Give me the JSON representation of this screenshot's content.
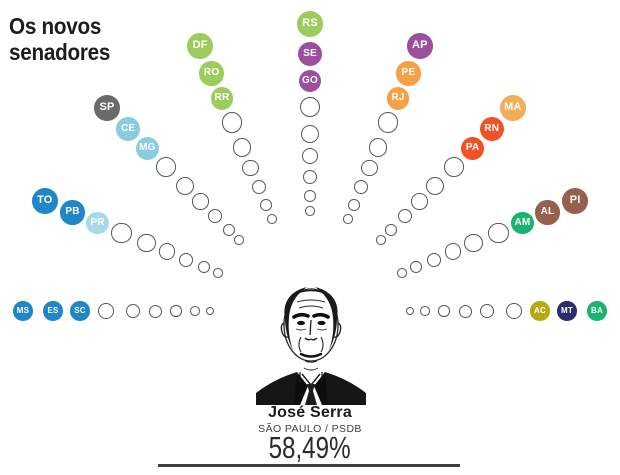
{
  "title": "Os novos senadores",
  "person": {
    "name": "José Serra",
    "subtitle": "SÃO PAULO / PSDB",
    "percent": "58,49%"
  },
  "colors": {
    "background": "#ffffff",
    "title_text": "#1e1c1d",
    "empty_seat_ring": "#56575b",
    "seat_label_text": "#ffffff",
    "rule": "#414042"
  },
  "chart_data": {
    "type": "seat-map",
    "title": "Os novos senadores",
    "layout": "fan of 9 rays converging on center portrait, each ray has 3 colored state seats (outer) and 6 empty seats (inner, shrinking toward center)",
    "center": {
      "name": "José Serra",
      "state_party": "SÃO PAULO / PSDB",
      "vote_share_label": "58,49%",
      "vote_share_pct": 58.49
    },
    "seats_per_ray": 9,
    "colored_per_ray": 3,
    "empty_per_ray": 6,
    "rays": [
      {
        "direction": "west",
        "states": [
          {
            "label": "MS",
            "color": "#1f86c7"
          },
          {
            "label": "ES",
            "color": "#1f86c7"
          },
          {
            "label": "SC",
            "color": "#1f86c7"
          }
        ]
      },
      {
        "direction": "west-northwest",
        "states": [
          {
            "label": "TO",
            "color": "#1f86c7"
          },
          {
            "label": "PB",
            "color": "#1f86c7"
          },
          {
            "label": "PR",
            "color": "#a7dae8"
          }
        ]
      },
      {
        "direction": "northwest",
        "states": [
          {
            "label": "SP",
            "color": "#6a6a6a"
          },
          {
            "label": "CE",
            "color": "#87cddf"
          },
          {
            "label": "MG",
            "color": "#87cddf"
          }
        ]
      },
      {
        "direction": "north-northwest",
        "states": [
          {
            "label": "DF",
            "color": "#9dcb5c"
          },
          {
            "label": "RO",
            "color": "#9dcb5c"
          },
          {
            "label": "RR",
            "color": "#9dcb5c"
          }
        ]
      },
      {
        "direction": "north",
        "states": [
          {
            "label": "RS",
            "color": "#9dcb5c"
          },
          {
            "label": "SE",
            "color": "#9c4f9c"
          },
          {
            "label": "GO",
            "color": "#9c4f9c"
          }
        ]
      },
      {
        "direction": "north-northeast",
        "states": [
          {
            "label": "AP",
            "color": "#9c4f9c"
          },
          {
            "label": "PE",
            "color": "#f7a045"
          },
          {
            "label": "RJ",
            "color": "#f7a045"
          }
        ]
      },
      {
        "direction": "northeast",
        "states": [
          {
            "label": "MA",
            "color": "#f3ac58"
          },
          {
            "label": "RN",
            "color": "#ef5226"
          },
          {
            "label": "PA",
            "color": "#ef5226"
          }
        ]
      },
      {
        "direction": "east-northeast",
        "states": [
          {
            "label": "PI",
            "color": "#95604d"
          },
          {
            "label": "AL",
            "color": "#95604d"
          },
          {
            "label": "AM",
            "color": "#1ab470"
          }
        ]
      },
      {
        "direction": "east",
        "states": [
          {
            "label": "BA",
            "color": "#1ab470"
          },
          {
            "label": "MT",
            "color": "#2a2d6e"
          },
          {
            "label": "AC",
            "color": "#b6aa10"
          }
        ]
      }
    ]
  }
}
